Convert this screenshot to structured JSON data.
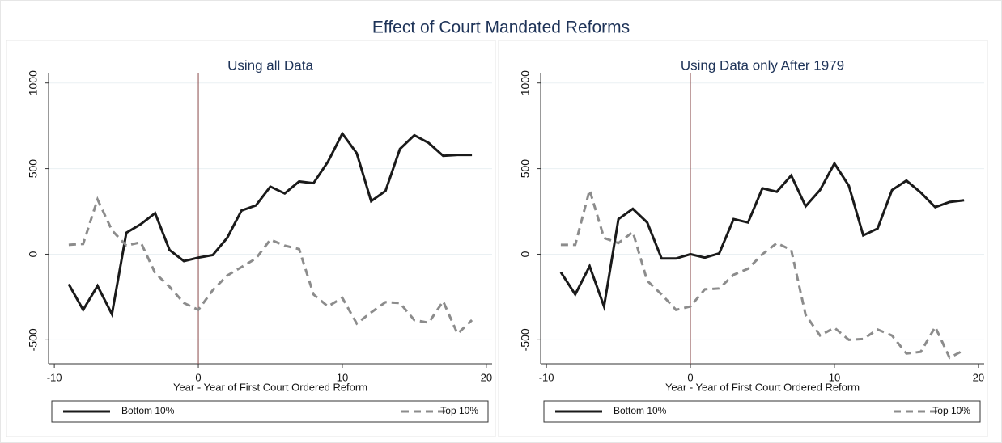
{
  "title": "Effect of Court Mandated Reforms",
  "chart_data": [
    {
      "type": "line",
      "title": "Using all Data",
      "xlabel": "Year - Year of First Court Ordered Reform",
      "x": [
        -9,
        -8,
        -7,
        -6,
        -5,
        -4,
        -3,
        -2,
        -1,
        0,
        1,
        2,
        3,
        4,
        5,
        6,
        7,
        8,
        9,
        10,
        11,
        12,
        13,
        14,
        15,
        16,
        17,
        18,
        19
      ],
      "series": [
        {
          "name": "Bottom 10%",
          "color": "#1a1a1a",
          "dash": false,
          "values": [
            -175,
            -325,
            -185,
            -350,
            125,
            175,
            240,
            25,
            -40,
            -20,
            -5,
            95,
            255,
            285,
            395,
            355,
            425,
            415,
            540,
            705,
            590,
            310,
            370,
            615,
            695,
            650,
            575,
            580,
            580
          ]
        },
        {
          "name": "Top 10%",
          "color": "#8c8c8c",
          "dash": true,
          "values": [
            55,
            60,
            320,
            140,
            50,
            70,
            -110,
            -190,
            -285,
            -325,
            -210,
            -125,
            -75,
            -25,
            85,
            50,
            30,
            -235,
            -305,
            -255,
            -405,
            -340,
            -280,
            -285,
            -385,
            -400,
            -275,
            -465,
            -385
          ]
        }
      ],
      "xlim": [
        -10.4,
        20.4
      ],
      "xticks": [
        -10,
        0,
        10,
        20
      ],
      "ylim": [
        -640,
        1060
      ],
      "yticks": [
        -500,
        0,
        500,
        1000
      ],
      "xline": 0,
      "grid": true,
      "legend": "bottom"
    },
    {
      "type": "line",
      "title": "Using Data only After 1979",
      "xlabel": "Year - Year of First Court Ordered Reform",
      "x": [
        -9,
        -8,
        -7,
        -6,
        -5,
        -4,
        -3,
        -2,
        -1,
        0,
        1,
        2,
        3,
        4,
        5,
        6,
        7,
        8,
        9,
        10,
        11,
        12,
        13,
        14,
        15,
        16,
        17,
        18,
        19
      ],
      "series": [
        {
          "name": "Bottom 10%",
          "color": "#1a1a1a",
          "dash": false,
          "values": [
            -105,
            -235,
            -70,
            -305,
            205,
            265,
            185,
            -25,
            -25,
            0,
            -20,
            5,
            205,
            185,
            385,
            365,
            460,
            280,
            375,
            530,
            400,
            110,
            150,
            375,
            430,
            360,
            275,
            305,
            315
          ]
        },
        {
          "name": "Top 10%",
          "color": "#8c8c8c",
          "dash": true,
          "values": [
            55,
            55,
            375,
            95,
            65,
            130,
            -155,
            -235,
            -325,
            -305,
            -205,
            -200,
            -120,
            -85,
            0,
            65,
            25,
            -355,
            -475,
            -430,
            -500,
            -495,
            -440,
            -475,
            -580,
            -570,
            -425,
            -605,
            -560
          ]
        }
      ],
      "xlim": [
        -10.4,
        20.4
      ],
      "xticks": [
        -10,
        0,
        10,
        20
      ],
      "ylim": [
        -640,
        1060
      ],
      "yticks": [
        -500,
        0,
        500,
        1000
      ],
      "xline": 0,
      "grid": true,
      "legend": "bottom"
    }
  ]
}
